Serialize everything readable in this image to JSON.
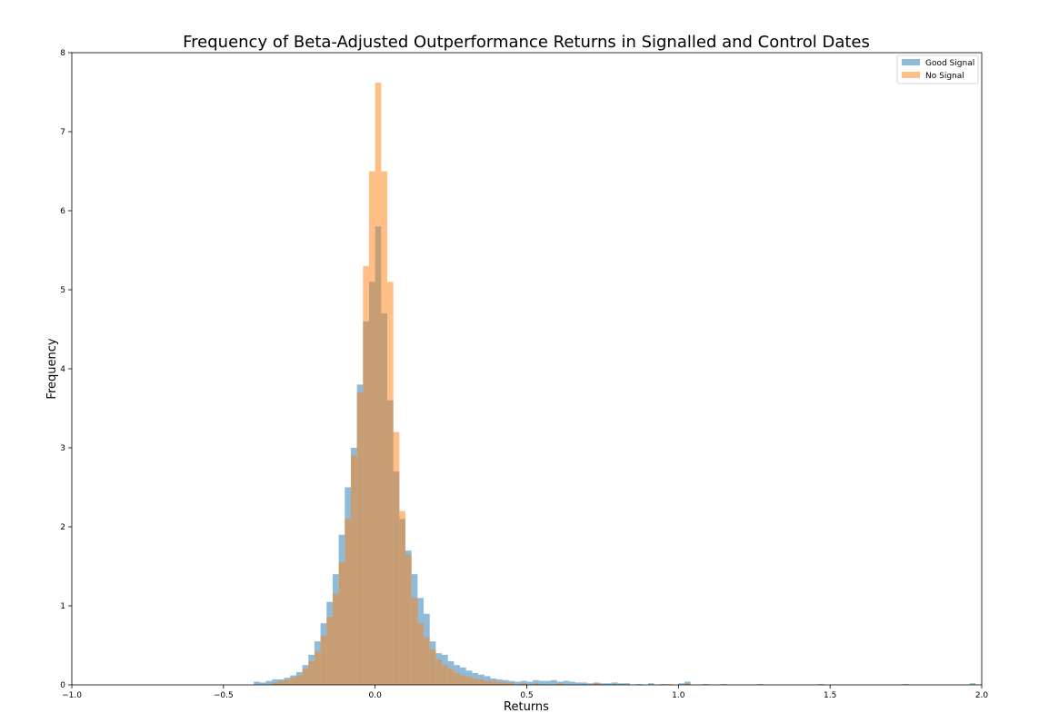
{
  "chart_data": {
    "type": "histogram",
    "title": "Frequency of Beta-Adjusted Outperformance Returns in Signalled and Control Dates",
    "xlabel": "Returns",
    "ylabel": "Frequency",
    "xlim": [
      -1.0,
      2.0
    ],
    "ylim": [
      0,
      8
    ],
    "xticks": [
      -1.0,
      -0.5,
      0.0,
      0.5,
      1.0,
      1.5,
      2.0
    ],
    "xtick_labels": [
      "−1.0",
      "−0.5",
      "0.0",
      "0.5",
      "1.0",
      "1.5",
      "2.0"
    ],
    "yticks": [
      0,
      1,
      2,
      3,
      4,
      5,
      6,
      7,
      8
    ],
    "ytick_labels": [
      "0",
      "1",
      "2",
      "3",
      "4",
      "5",
      "6",
      "7",
      "8"
    ],
    "grid": false,
    "legend_position": "top-right",
    "series": [
      {
        "name": "Good Signal",
        "color": "#1f77b4",
        "opacity": 0.5,
        "bins": [
          [
            -0.4,
            0.04
          ],
          [
            -0.38,
            0.03
          ],
          [
            -0.36,
            0.05
          ],
          [
            -0.34,
            0.07
          ],
          [
            -0.32,
            0.07
          ],
          [
            -0.3,
            0.09
          ],
          [
            -0.28,
            0.12
          ],
          [
            -0.26,
            0.16
          ],
          [
            -0.24,
            0.25
          ],
          [
            -0.22,
            0.38
          ],
          [
            -0.2,
            0.55
          ],
          [
            -0.18,
            0.78
          ],
          [
            -0.16,
            1.05
          ],
          [
            -0.14,
            1.4
          ],
          [
            -0.12,
            1.9
          ],
          [
            -0.1,
            2.5
          ],
          [
            -0.08,
            3.0
          ],
          [
            -0.06,
            3.8
          ],
          [
            -0.04,
            4.6
          ],
          [
            -0.02,
            5.1
          ],
          [
            0.0,
            5.8
          ],
          [
            0.02,
            4.7
          ],
          [
            0.04,
            3.6
          ],
          [
            0.06,
            2.7
          ],
          [
            0.08,
            2.1
          ],
          [
            0.1,
            1.7
          ],
          [
            0.12,
            1.4
          ],
          [
            0.14,
            1.1
          ],
          [
            0.16,
            0.9
          ],
          [
            0.18,
            0.55
          ],
          [
            0.2,
            0.4
          ],
          [
            0.22,
            0.38
          ],
          [
            0.24,
            0.3
          ],
          [
            0.26,
            0.25
          ],
          [
            0.28,
            0.22
          ],
          [
            0.3,
            0.18
          ],
          [
            0.32,
            0.15
          ],
          [
            0.34,
            0.13
          ],
          [
            0.36,
            0.11
          ],
          [
            0.38,
            0.08
          ],
          [
            0.4,
            0.07
          ],
          [
            0.42,
            0.06
          ],
          [
            0.44,
            0.05
          ],
          [
            0.46,
            0.04
          ],
          [
            0.48,
            0.05
          ],
          [
            0.5,
            0.04
          ],
          [
            0.52,
            0.06
          ],
          [
            0.54,
            0.05
          ],
          [
            0.56,
            0.05
          ],
          [
            0.58,
            0.06
          ],
          [
            0.6,
            0.04
          ],
          [
            0.62,
            0.05
          ],
          [
            0.64,
            0.04
          ],
          [
            0.66,
            0.03
          ],
          [
            0.68,
            0.03
          ],
          [
            0.7,
            0.02
          ],
          [
            0.72,
            0.03
          ],
          [
            0.74,
            0.02
          ],
          [
            0.76,
            0.02
          ],
          [
            0.78,
            0.03
          ],
          [
            0.8,
            0.02
          ],
          [
            0.82,
            0.02
          ],
          [
            0.86,
            0.01
          ],
          [
            0.9,
            0.02
          ],
          [
            0.94,
            0.01
          ],
          [
            1.0,
            0.02
          ],
          [
            1.02,
            0.04
          ],
          [
            1.08,
            0.01
          ],
          [
            1.14,
            0.01
          ],
          [
            1.26,
            0.01
          ],
          [
            1.46,
            0.01
          ],
          [
            1.74,
            0.01
          ],
          [
            1.96,
            0.02
          ]
        ]
      },
      {
        "name": "No Signal",
        "color": "#ff7f0e",
        "opacity": 0.5,
        "bins": [
          [
            -0.34,
            0.03
          ],
          [
            -0.32,
            0.05
          ],
          [
            -0.3,
            0.06
          ],
          [
            -0.28,
            0.09
          ],
          [
            -0.26,
            0.12
          ],
          [
            -0.24,
            0.2
          ],
          [
            -0.22,
            0.3
          ],
          [
            -0.2,
            0.42
          ],
          [
            -0.18,
            0.62
          ],
          [
            -0.16,
            0.86
          ],
          [
            -0.14,
            1.15
          ],
          [
            -0.12,
            1.55
          ],
          [
            -0.1,
            2.1
          ],
          [
            -0.08,
            2.9
          ],
          [
            -0.06,
            3.7
          ],
          [
            -0.04,
            5.3
          ],
          [
            -0.02,
            6.5
          ],
          [
            0.0,
            7.62
          ],
          [
            0.02,
            6.5
          ],
          [
            0.04,
            5.1
          ],
          [
            0.06,
            3.2
          ],
          [
            0.08,
            2.2
          ],
          [
            0.1,
            1.65
          ],
          [
            0.12,
            1.1
          ],
          [
            0.14,
            0.78
          ],
          [
            0.16,
            0.6
          ],
          [
            0.18,
            0.45
          ],
          [
            0.2,
            0.32
          ],
          [
            0.22,
            0.25
          ],
          [
            0.24,
            0.2
          ],
          [
            0.26,
            0.15
          ],
          [
            0.28,
            0.12
          ],
          [
            0.3,
            0.1
          ],
          [
            0.32,
            0.08
          ],
          [
            0.34,
            0.07
          ],
          [
            0.36,
            0.05
          ],
          [
            0.38,
            0.05
          ],
          [
            0.4,
            0.04
          ],
          [
            0.42,
            0.03
          ],
          [
            0.44,
            0.03
          ],
          [
            0.48,
            0.02
          ],
          [
            0.52,
            0.02
          ],
          [
            0.6,
            0.02
          ],
          [
            0.72,
            0.02
          ],
          [
            0.96,
            0.01
          ],
          [
            1.02,
            0.02
          ]
        ]
      }
    ]
  }
}
